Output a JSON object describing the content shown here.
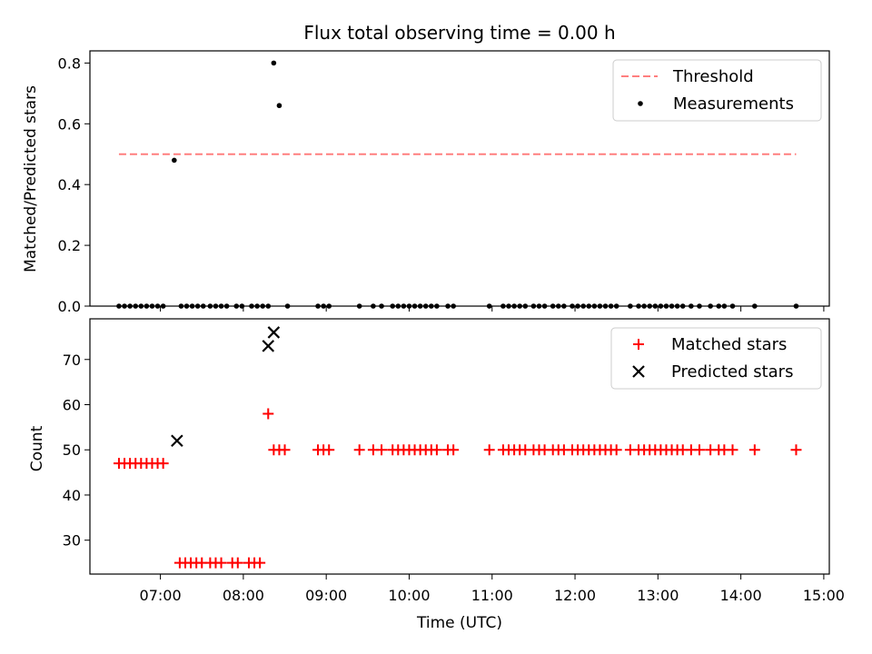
{
  "chart_data": {
    "title": "Flux total observing time = 0.00 h",
    "xlabel": "Time (UTC)",
    "x_type": "time",
    "xlim": [
      "06:09",
      "15:04"
    ],
    "x_ticks": [
      "07:00",
      "08:00",
      "09:00",
      "10:00",
      "11:00",
      "12:00",
      "13:00",
      "14:00",
      "15:00"
    ],
    "panels": [
      {
        "type": "scatter",
        "ylabel": "Matched/Predicted stars",
        "ylim": [
          0,
          0.84
        ],
        "y_ticks": [
          "0.0",
          "0.2",
          "0.4",
          "0.6",
          "0.8"
        ],
        "legend_position": "top-right",
        "series": [
          {
            "name": "Threshold",
            "kind": "dashed-line",
            "color": "#ff7f7f",
            "x": [
              "06:30",
              "14:40"
            ],
            "y": [
              0.5,
              0.5
            ]
          },
          {
            "name": "Measurements",
            "kind": "dot",
            "color": "#000000",
            "x": [
              "06:30",
              "06:34",
              "06:38",
              "06:42",
              "06:46",
              "06:50",
              "06:54",
              "06:58",
              "07:02",
              "07:10",
              "07:15",
              "07:19",
              "07:23",
              "07:27",
              "07:31",
              "07:36",
              "07:40",
              "07:44",
              "07:48",
              "07:55",
              "07:59",
              "08:06",
              "08:10",
              "08:14",
              "08:18",
              "08:22",
              "08:26",
              "08:32",
              "08:54",
              "08:58",
              "09:02",
              "09:24",
              "09:34",
              "09:40",
              "09:48",
              "09:52",
              "09:56",
              "10:00",
              "10:04",
              "10:08",
              "10:12",
              "10:16",
              "10:20",
              "10:28",
              "10:32",
              "10:58",
              "11:08",
              "11:12",
              "11:16",
              "11:20",
              "11:24",
              "11:30",
              "11:34",
              "11:38",
              "11:44",
              "11:48",
              "11:52",
              "11:58",
              "12:02",
              "12:06",
              "12:10",
              "12:14",
              "12:18",
              "12:22",
              "12:26",
              "12:30",
              "12:40",
              "12:46",
              "12:50",
              "12:54",
              "12:58",
              "13:02",
              "13:06",
              "13:10",
              "13:14",
              "13:18",
              "13:24",
              "13:30",
              "13:38",
              "13:44",
              "13:48",
              "13:54",
              "14:10",
              "14:40"
            ],
            "y": [
              0,
              0,
              0,
              0,
              0,
              0,
              0,
              0,
              0,
              0.48,
              0,
              0,
              0,
              0,
              0,
              0,
              0,
              0,
              0,
              0,
              0,
              0,
              0,
              0,
              0,
              0.8,
              0.66,
              0,
              0,
              0,
              0,
              0,
              0,
              0,
              0,
              0,
              0,
              0,
              0,
              0,
              0,
              0,
              0,
              0,
              0,
              0,
              0,
              0,
              0,
              0,
              0,
              0,
              0,
              0,
              0,
              0,
              0,
              0,
              0,
              0,
              0,
              0,
              0,
              0,
              0,
              0,
              0,
              0,
              0,
              0,
              0,
              0,
              0,
              0,
              0,
              0,
              0,
              0,
              0,
              0,
              0,
              0,
              0,
              0
            ]
          }
        ]
      },
      {
        "type": "scatter",
        "ylabel": "Count",
        "ylim": [
          22.5,
          79
        ],
        "y_ticks": [
          "30",
          "40",
          "50",
          "60",
          "70"
        ],
        "legend_position": "top-right",
        "series": [
          {
            "name": "Matched stars",
            "kind": "plus",
            "color": "#ff0000",
            "x": [
              "06:30",
              "06:34",
              "06:38",
              "06:42",
              "06:46",
              "06:50",
              "06:54",
              "06:58",
              "07:02",
              "07:14",
              "07:18",
              "07:22",
              "07:26",
              "07:30",
              "07:36",
              "07:40",
              "07:44",
              "07:52",
              "07:56",
              "08:04",
              "08:08",
              "08:12",
              "08:18",
              "08:22",
              "08:26",
              "08:30",
              "08:54",
              "08:58",
              "09:02",
              "09:24",
              "09:34",
              "09:40",
              "09:48",
              "09:52",
              "09:56",
              "10:00",
              "10:04",
              "10:08",
              "10:12",
              "10:16",
              "10:20",
              "10:28",
              "10:32",
              "10:58",
              "11:08",
              "11:12",
              "11:16",
              "11:20",
              "11:24",
              "11:30",
              "11:34",
              "11:38",
              "11:44",
              "11:48",
              "11:52",
              "11:58",
              "12:02",
              "12:06",
              "12:10",
              "12:14",
              "12:18",
              "12:22",
              "12:26",
              "12:30",
              "12:40",
              "12:46",
              "12:50",
              "12:54",
              "12:58",
              "13:02",
              "13:06",
              "13:10",
              "13:14",
              "13:18",
              "13:24",
              "13:30",
              "13:38",
              "13:44",
              "13:48",
              "13:54",
              "14:10",
              "14:40"
            ],
            "y": [
              47,
              47,
              47,
              47,
              47,
              47,
              47,
              47,
              47,
              25,
              25,
              25,
              25,
              25,
              25,
              25,
              25,
              25,
              25,
              25,
              25,
              25,
              58,
              50,
              50,
              50,
              50,
              50,
              50,
              50,
              50,
              50,
              50,
              50,
              50,
              50,
              50,
              50,
              50,
              50,
              50,
              50,
              50,
              50,
              50,
              50,
              50,
              50,
              50,
              50,
              50,
              50,
              50,
              50,
              50,
              50,
              50,
              50,
              50,
              50,
              50,
              50,
              50,
              50,
              50,
              50,
              50,
              50,
              50,
              50,
              50,
              50,
              50,
              50,
              50,
              50,
              50,
              50,
              50,
              50,
              50,
              50
            ]
          },
          {
            "name": "Predicted stars",
            "kind": "cross",
            "color": "#000000",
            "x": [
              "07:12",
              "08:18",
              "08:22"
            ],
            "y": [
              52,
              73,
              76
            ]
          }
        ]
      }
    ]
  }
}
